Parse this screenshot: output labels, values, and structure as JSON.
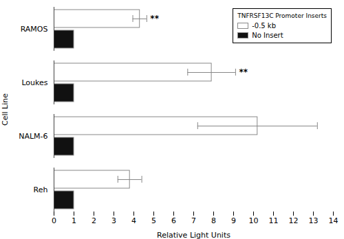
{
  "chart_data": {
    "type": "bar",
    "orientation": "horizontal",
    "categories": [
      "Reh",
      "NALM-6",
      "Loukes",
      "RAMOS"
    ],
    "series": [
      {
        "name": "-0.5 kb",
        "color": "#ffffff",
        "values": [
          3.8,
          10.2,
          7.9,
          4.3
        ],
        "errors": [
          0.6,
          3.0,
          1.2,
          0.35
        ]
      },
      {
        "name": "No Insert",
        "color": "#111111",
        "values": [
          1.0,
          1.0,
          1.0,
          1.0
        ]
      }
    ],
    "xlabel": "Relative Light Units",
    "ylabel": "Cell Line",
    "xlim": [
      0,
      14
    ],
    "xticks": [
      0,
      1,
      2,
      3,
      4,
      5,
      6,
      7,
      8,
      9,
      10,
      11,
      12,
      13,
      14
    ],
    "legend": "upper right",
    "legend_title": "TNFRSF13C Promoter Inserts",
    "annotations": [
      {
        "text": "**",
        "category": "RAMOS",
        "series": "-0.5 kb"
      },
      {
        "text": "**",
        "category": "Loukes",
        "series": "-0.5 kb"
      }
    ]
  }
}
